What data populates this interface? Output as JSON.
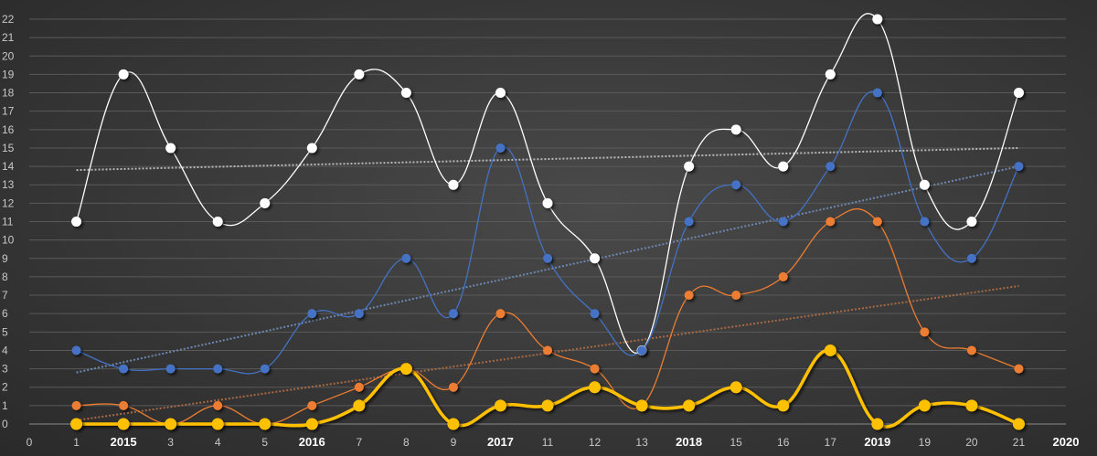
{
  "chart_data": {
    "type": "line",
    "x": [
      1,
      2,
      3,
      4,
      5,
      6,
      7,
      8,
      9,
      10,
      11,
      12,
      13,
      14,
      15,
      16,
      17,
      18,
      19,
      20,
      21
    ],
    "x_tick_labels": [
      "0",
      "1",
      "2015",
      "3",
      "4",
      "5",
      "2016",
      "7",
      "8",
      "9",
      "2017",
      "11",
      "12",
      "13",
      "2018",
      "15",
      "16",
      "17",
      "2019",
      "19",
      "20",
      "21",
      "2020"
    ],
    "bold_tick_labels": [
      "2015",
      "2016",
      "2017",
      "2018",
      "2019",
      "2020"
    ],
    "xlim": [
      0,
      22
    ],
    "ylim": [
      0,
      22
    ],
    "y_ticks": [
      0,
      1,
      2,
      3,
      4,
      5,
      6,
      7,
      8,
      9,
      10,
      11,
      12,
      13,
      14,
      15,
      16,
      17,
      18,
      19,
      20,
      21,
      22
    ],
    "grid": true,
    "series": [
      {
        "values": [
          11,
          19,
          15,
          11,
          12,
          15,
          19,
          18,
          13,
          18,
          12,
          9,
          4,
          14,
          16,
          14,
          19,
          22,
          13,
          11,
          18
        ],
        "color": "#ffffff",
        "trendline": [
          13.8,
          15.0
        ]
      },
      {
        "values": [
          4,
          3,
          3,
          3,
          3,
          6,
          6,
          9,
          6,
          15,
          9,
          6,
          4,
          11,
          13,
          11,
          14,
          18,
          11,
          9,
          14
        ],
        "color": "#4472c4",
        "trendline": [
          2.8,
          14.0
        ]
      },
      {
        "values": [
          1,
          1,
          0,
          1,
          0,
          1,
          2,
          3,
          2,
          6,
          4,
          3,
          1,
          7,
          7,
          8,
          11,
          11,
          5,
          4,
          3
        ],
        "color": "#ed7d31",
        "trendline": [
          0.2,
          7.5
        ]
      },
      {
        "values": [
          0,
          0,
          0,
          0,
          0,
          0,
          1,
          3,
          0,
          1,
          1,
          2,
          1,
          1,
          2,
          1,
          4,
          0,
          1,
          1,
          0
        ],
        "color": "#ffc000"
      }
    ]
  }
}
